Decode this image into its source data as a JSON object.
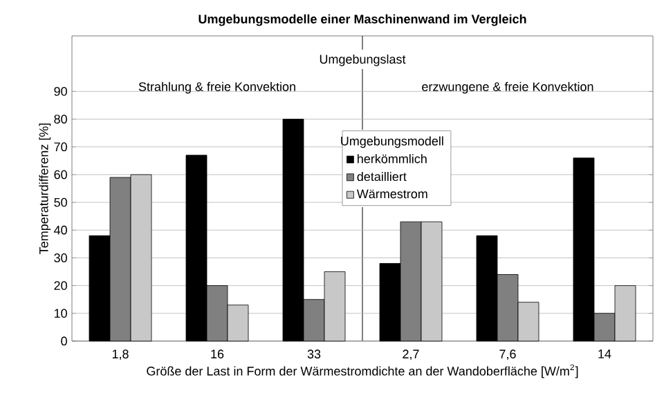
{
  "chart_data": {
    "type": "bar",
    "title": "Umgebungsmodelle einer Maschinenwand im Vergleich",
    "xlabel": "Größe der Last in Form der Wärmestromdichte an der Wandoberfläche [W/m$^{2}$]",
    "ylabel": "Temperaturdifferenz  [%]",
    "legend_title": "Umgebungsmodell",
    "annotations": [
      "Umgebungslast",
      "Strahlung & freie Konvektion",
      "erzwungene & freie Konvektion"
    ],
    "categories": [
      "1,8",
      "16",
      "33",
      "2,7",
      "7,6",
      "14"
    ],
    "series": [
      {
        "name": "herkömmlich",
        "color": "#000000",
        "values": [
          38,
          67,
          80,
          28,
          38,
          66
        ]
      },
      {
        "name": "detailliert",
        "color": "#808080",
        "values": [
          59,
          20,
          15,
          43,
          24,
          10
        ]
      },
      {
        "name": "Wärmestrom",
        "color": "#c8c8c8",
        "values": [
          60,
          13,
          25,
          43,
          14,
          20
        ]
      }
    ],
    "ylim": [
      0,
      110
    ],
    "yticks": [
      0,
      10,
      20,
      30,
      40,
      50,
      60,
      70,
      80,
      90
    ],
    "grid": "y",
    "legend": "top"
  }
}
